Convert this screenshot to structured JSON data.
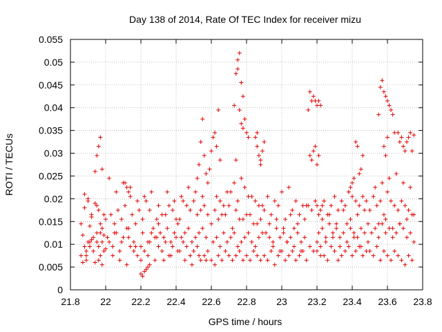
{
  "chart_data": {
    "type": "scatter",
    "title": "Day 138 of 2014, Rate Of TEC Index for receiver mizu",
    "xlabel": "GPS time / hours",
    "ylabel": "ROTI / TECUs",
    "xlim": [
      21.8,
      23.8
    ],
    "ylim": [
      0,
      0.055
    ],
    "xticks": [
      21.8,
      22,
      22.2,
      22.4,
      22.6,
      22.8,
      23,
      23.2,
      23.4,
      23.6,
      23.8
    ],
    "xtick_labels": [
      "21.8",
      "22",
      "22.2",
      "22.4",
      "22.6",
      "22.8",
      "23",
      "23.2",
      "23.4",
      "23.6",
      "23.8"
    ],
    "yticks": [
      0,
      0.005,
      0.01,
      0.015,
      0.02,
      0.025,
      0.03,
      0.035,
      0.04,
      0.045,
      0.05,
      0.055
    ],
    "ytick_labels": [
      "0",
      "0.005",
      "0.01",
      "0.015",
      "0.02",
      "0.025",
      "0.03",
      "0.035",
      "0.04",
      "0.045",
      "0.05",
      "0.055"
    ],
    "grid": true,
    "marker": "+",
    "marker_color": "#e00000",
    "series": [
      {
        "name": "ROTI",
        "x": [
          21.86,
          21.87,
          21.88,
          21.89,
          21.9,
          21.91,
          21.92,
          21.93,
          21.95,
          21.96,
          21.97,
          21.98,
          21.99,
          22.0,
          21.86,
          21.88,
          21.9,
          21.92,
          21.94,
          21.96,
          21.98,
          22.0,
          21.87,
          21.89,
          21.91,
          21.93,
          21.95,
          21.97,
          21.99,
          21.88,
          21.9,
          21.92,
          21.95,
          21.97,
          21.99,
          22.01,
          21.89,
          21.91,
          21.94,
          21.96,
          21.98,
          21.94,
          21.95,
          21.96,
          21.97,
          21.98,
          22.02,
          22.04,
          22.06,
          22.08,
          22.1,
          22.12,
          22.14,
          22.16,
          22.18,
          22.2,
          22.22,
          22.24,
          22.26,
          22.28,
          22.03,
          22.05,
          22.07,
          22.09,
          22.11,
          22.13,
          22.15,
          22.17,
          22.19,
          22.21,
          22.23,
          22.25,
          22.27,
          22.29,
          22.02,
          22.06,
          22.1,
          22.14,
          22.18,
          22.22,
          22.26,
          22.3,
          22.04,
          22.08,
          22.12,
          22.16,
          22.2,
          22.24,
          22.28,
          22.05,
          22.09,
          22.13,
          22.17,
          22.21,
          22.25,
          22.29,
          22.2,
          22.21,
          22.22,
          22.23,
          22.24,
          22.25,
          22.11,
          22.12,
          22.13,
          22.14,
          22.3,
          22.32,
          22.34,
          22.36,
          22.38,
          22.4,
          22.42,
          22.44,
          22.46,
          22.48,
          22.5,
          22.52,
          22.54,
          22.56,
          22.58,
          22.31,
          22.33,
          22.35,
          22.37,
          22.39,
          22.41,
          22.43,
          22.45,
          22.47,
          22.49,
          22.51,
          22.53,
          22.55,
          22.57,
          22.32,
          22.36,
          22.4,
          22.44,
          22.48,
          22.52,
          22.56,
          22.3,
          22.34,
          22.38,
          22.42,
          22.46,
          22.5,
          22.54,
          22.58,
          22.33,
          22.37,
          22.41,
          22.45,
          22.49,
          22.53,
          22.57,
          22.35,
          22.39,
          22.43,
          22.47,
          22.51,
          22.55,
          22.52,
          22.53,
          22.54,
          22.55,
          22.56,
          22.57,
          22.58,
          22.59,
          22.6,
          22.61,
          22.62,
          22.63,
          22.64,
          22.65,
          22.6,
          22.62,
          22.64,
          22.66,
          22.68,
          22.7,
          22.72,
          22.74,
          22.76,
          22.78,
          22.8,
          22.82,
          22.84,
          22.86,
          22.88,
          22.61,
          22.63,
          22.65,
          22.67,
          22.69,
          22.71,
          22.73,
          22.75,
          22.77,
          22.79,
          22.81,
          22.83,
          22.85,
          22.87,
          22.89,
          22.6,
          22.64,
          22.68,
          22.72,
          22.76,
          22.8,
          22.84,
          22.88,
          22.62,
          22.66,
          22.7,
          22.74,
          22.78,
          22.82,
          22.86,
          22.63,
          22.67,
          22.71,
          22.75,
          22.79,
          22.83,
          22.87,
          22.65,
          22.69,
          22.73,
          22.77,
          22.81,
          22.85,
          22.89,
          22.73,
          22.74,
          22.75,
          22.76,
          22.77,
          22.78,
          22.79,
          22.8,
          22.81,
          22.76,
          22.77,
          22.78,
          22.75,
          22.74,
          22.85,
          22.86,
          22.87,
          22.88,
          22.89,
          22.9,
          22.86,
          22.88,
          22.9,
          22.92,
          22.94,
          22.96,
          22.98,
          23.0,
          23.02,
          23.04,
          23.06,
          23.08,
          23.1,
          23.12,
          23.14,
          22.91,
          22.93,
          22.95,
          22.97,
          22.99,
          23.01,
          23.03,
          23.05,
          23.07,
          23.09,
          23.11,
          23.13,
          22.9,
          22.94,
          22.98,
          23.02,
          23.06,
          23.1,
          23.14,
          22.92,
          22.96,
          23.0,
          23.04,
          23.08,
          23.12,
          22.93,
          22.97,
          23.01,
          23.05,
          23.09,
          23.13,
          22.95,
          22.99,
          23.03,
          23.07,
          23.11,
          23.15,
          23.16,
          23.17,
          23.18,
          23.19,
          23.2,
          23.21,
          23.22,
          23.16,
          23.17,
          23.18,
          23.19,
          23.2,
          23.21,
          23.15,
          23.17,
          23.19,
          23.21,
          23.23,
          23.16,
          23.18,
          23.2,
          23.22,
          23.2,
          23.22,
          23.24,
          23.26,
          23.28,
          23.3,
          23.32,
          23.34,
          23.36,
          23.38,
          23.4,
          23.42,
          23.44,
          23.46,
          23.48,
          23.21,
          23.23,
          23.25,
          23.27,
          23.29,
          23.31,
          23.33,
          23.35,
          23.37,
          23.39,
          23.41,
          23.43,
          23.45,
          23.47,
          23.49,
          23.2,
          23.24,
          23.28,
          23.32,
          23.36,
          23.4,
          23.44,
          23.48,
          23.22,
          23.26,
          23.3,
          23.34,
          23.38,
          23.42,
          23.46,
          23.23,
          23.27,
          23.31,
          23.35,
          23.39,
          23.43,
          23.47,
          23.25,
          23.29,
          23.33,
          23.37,
          23.41,
          23.45,
          23.49,
          23.38,
          23.39,
          23.4,
          23.41,
          23.42,
          23.43,
          23.44,
          23.45,
          23.46,
          23.5,
          23.52,
          23.54,
          23.56,
          23.58,
          23.6,
          23.62,
          23.64,
          23.66,
          23.68,
          23.7,
          23.72,
          23.74,
          23.51,
          23.53,
          23.55,
          23.57,
          23.59,
          23.61,
          23.63,
          23.65,
          23.67,
          23.69,
          23.71,
          23.73,
          23.75,
          23.5,
          23.54,
          23.58,
          23.62,
          23.66,
          23.7,
          23.74,
          23.52,
          23.56,
          23.6,
          23.64,
          23.68,
          23.72,
          23.53,
          23.57,
          23.61,
          23.65,
          23.69,
          23.73,
          23.55,
          23.59,
          23.63,
          23.67,
          23.71,
          23.75,
          23.55,
          23.56,
          23.57,
          23.58,
          23.59,
          23.6,
          23.61,
          23.62,
          23.63,
          23.64,
          23.58,
          23.59,
          23.6,
          23.66,
          23.67,
          23.68,
          23.69,
          23.7,
          23.71,
          23.72,
          23.73,
          23.74,
          23.75
        ],
        "y": [
          0.0075,
          0.012,
          0.0095,
          0.0065,
          0.0105,
          0.014,
          0.011,
          0.0085,
          0.0125,
          0.0095,
          0.0075,
          0.0105,
          0.012,
          0.009,
          0.0145,
          0.018,
          0.02,
          0.016,
          0.019,
          0.0175,
          0.0135,
          0.0155,
          0.006,
          0.0085,
          0.0095,
          0.0115,
          0.0105,
          0.0125,
          0.0085,
          0.021,
          0.0195,
          0.0165,
          0.0185,
          0.0145,
          0.0165,
          0.0115,
          0.0075,
          0.0105,
          0.006,
          0.0065,
          0.0055,
          0.026,
          0.0295,
          0.0315,
          0.0335,
          0.0265,
          0.0105,
          0.0095,
          0.0125,
          0.0085,
          0.0115,
          0.0135,
          0.0095,
          0.0105,
          0.0075,
          0.0065,
          0.0085,
          0.0105,
          0.0125,
          0.0115,
          0.0165,
          0.0145,
          0.0175,
          0.0155,
          0.0185,
          0.0135,
          0.0165,
          0.0145,
          0.0175,
          0.0155,
          0.0195,
          0.0175,
          0.0135,
          0.0155,
          0.0245,
          0.0215,
          0.0235,
          0.0225,
          0.0195,
          0.0205,
          0.0215,
          0.0185,
          0.0075,
          0.0065,
          0.0055,
          0.0085,
          0.0095,
          0.0075,
          0.0065,
          0.0125,
          0.0105,
          0.0115,
          0.0095,
          0.0125,
          0.0105,
          0.0115,
          0.0035,
          0.003,
          0.004,
          0.0045,
          0.005,
          0.0055,
          0.0235,
          0.0225,
          0.0215,
          0.0205,
          0.0095,
          0.0085,
          0.0105,
          0.0075,
          0.0095,
          0.0115,
          0.0085,
          0.0105,
          0.0095,
          0.0075,
          0.0085,
          0.0095,
          0.0065,
          0.0075,
          0.0085,
          0.0125,
          0.0115,
          0.0135,
          0.0105,
          0.0125,
          0.0145,
          0.0115,
          0.0125,
          0.0135,
          0.0105,
          0.0115,
          0.0125,
          0.0135,
          0.0115,
          0.0165,
          0.0185,
          0.0155,
          0.0195,
          0.0175,
          0.0165,
          0.0185,
          0.0145,
          0.0165,
          0.0175,
          0.0155,
          0.0185,
          0.0195,
          0.0175,
          0.0165,
          0.0065,
          0.0075,
          0.0085,
          0.0065,
          0.0055,
          0.0075,
          0.0065,
          0.0215,
          0.0195,
          0.0205,
          0.0225,
          0.0215,
          0.0205,
          0.0245,
          0.0275,
          0.0325,
          0.0375,
          0.0295,
          0.0255,
          0.0235,
          0.0265,
          0.0305,
          0.0335,
          0.0345,
          0.0315,
          0.0395,
          0.0285,
          0.0065,
          0.0055,
          0.0075,
          0.0065,
          0.0085,
          0.0075,
          0.0065,
          0.0075,
          0.0085,
          0.0065,
          0.0075,
          0.0065,
          0.0085,
          0.0075,
          0.0065,
          0.0105,
          0.0115,
          0.0095,
          0.0125,
          0.0105,
          0.0115,
          0.0125,
          0.0095,
          0.0105,
          0.0115,
          0.0125,
          0.0105,
          0.0095,
          0.0115,
          0.0125,
          0.0145,
          0.0155,
          0.0165,
          0.0135,
          0.0155,
          0.0165,
          0.0145,
          0.0155,
          0.0175,
          0.0165,
          0.0185,
          0.0175,
          0.0155,
          0.0165,
          0.0145,
          0.0205,
          0.0185,
          0.0215,
          0.0195,
          0.0225,
          0.0205,
          0.0185,
          0.0195,
          0.0215,
          0.0235,
          0.0245,
          0.0205,
          0.0195,
          0.0185,
          0.0405,
          0.0475,
          0.0505,
          0.052,
          0.0455,
          0.0425,
          0.0375,
          0.0345,
          0.0335,
          0.0395,
          0.0365,
          0.0355,
          0.0485,
          0.0285,
          0.0335,
          0.0315,
          0.0295,
          0.0275,
          0.0305,
          0.0325,
          0.0345,
          0.0285,
          0.0075,
          0.0065,
          0.0085,
          0.0055,
          0.0075,
          0.0085,
          0.0065,
          0.0075,
          0.0085,
          0.0065,
          0.0075,
          0.0085,
          0.0065,
          0.0125,
          0.0115,
          0.0105,
          0.0135,
          0.0115,
          0.0125,
          0.0105,
          0.0115,
          0.0135,
          0.0125,
          0.0105,
          0.0115,
          0.0175,
          0.0165,
          0.0185,
          0.0155,
          0.0175,
          0.0165,
          0.0185,
          0.0205,
          0.0195,
          0.0215,
          0.0225,
          0.0195,
          0.0185,
          0.0145,
          0.0155,
          0.0135,
          0.0165,
          0.0145,
          0.0155,
          0.0095,
          0.0085,
          0.0105,
          0.0095,
          0.0085,
          0.0395,
          0.0435,
          0.0415,
          0.0425,
          0.0415,
          0.0405,
          0.0415,
          0.0405,
          0.0295,
          0.0285,
          0.0305,
          0.0315,
          0.0275,
          0.0295,
          0.0185,
          0.0175,
          0.0195,
          0.0165,
          0.0185,
          0.0095,
          0.0085,
          0.0105,
          0.0095,
          0.0185,
          0.0175,
          0.0195,
          0.0165,
          0.0185,
          0.0205,
          0.0175,
          0.0195,
          0.0185,
          0.0215,
          0.0205,
          0.0195,
          0.0185,
          0.0205,
          0.0195,
          0.0125,
          0.0135,
          0.0115,
          0.0145,
          0.0125,
          0.0135,
          0.0115,
          0.0125,
          0.0145,
          0.0135,
          0.0125,
          0.0115,
          0.0135,
          0.0125,
          0.0145,
          0.0085,
          0.0075,
          0.0095,
          0.0065,
          0.0085,
          0.0075,
          0.0095,
          0.0085,
          0.0075,
          0.0065,
          0.0085,
          0.0075,
          0.0095,
          0.0085,
          0.0075,
          0.0155,
          0.0165,
          0.0145,
          0.0175,
          0.0155,
          0.0165,
          0.0175,
          0.0105,
          0.0115,
          0.0095,
          0.0105,
          0.0115,
          0.0095,
          0.0105,
          0.0215,
          0.0225,
          0.0235,
          0.0245,
          0.0325,
          0.0315,
          0.0255,
          0.0265,
          0.0295,
          0.0085,
          0.0075,
          0.0095,
          0.0065,
          0.0085,
          0.0075,
          0.0065,
          0.0085,
          0.0075,
          0.0065,
          0.0055,
          0.0075,
          0.0065,
          0.0125,
          0.0135,
          0.0115,
          0.0145,
          0.0125,
          0.0135,
          0.0115,
          0.0125,
          0.0145,
          0.0135,
          0.0115,
          0.0125,
          0.0105,
          0.0175,
          0.0185,
          0.0165,
          0.0195,
          0.0175,
          0.0185,
          0.0165,
          0.0205,
          0.0195,
          0.0215,
          0.0185,
          0.0195,
          0.0175,
          0.0225,
          0.0235,
          0.0245,
          0.0255,
          0.0235,
          0.0225,
          0.0145,
          0.0155,
          0.0135,
          0.0145,
          0.0155,
          0.0165,
          0.0385,
          0.0445,
          0.046,
          0.0435,
          0.0425,
          0.0415,
          0.0405,
          0.0395,
          0.0385,
          0.0345,
          0.0315,
          0.0295,
          0.0335,
          0.0345,
          0.0325,
          0.0335,
          0.0315,
          0.0305,
          0.0325,
          0.0335,
          0.0345,
          0.0305,
          0.034
        ]
      }
    ]
  }
}
